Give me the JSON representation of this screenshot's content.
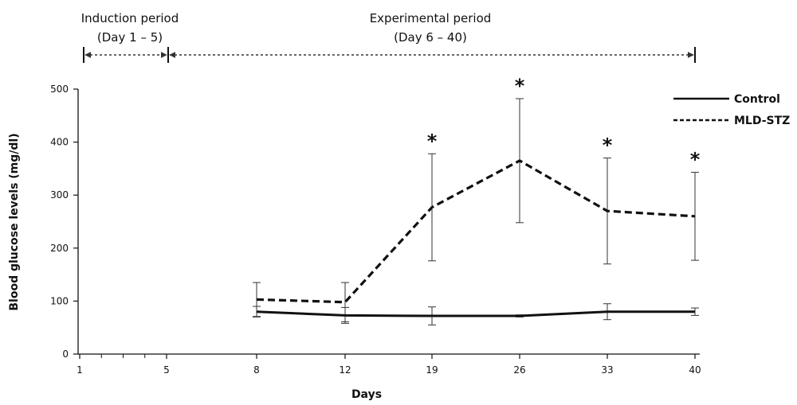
{
  "chart_data": {
    "type": "line",
    "xlabel": "Days",
    "ylabel": "Blood glucose levels (mg/dl)",
    "ylim": [
      0,
      500
    ],
    "y_ticks": [
      0,
      100,
      200,
      300,
      400,
      500
    ],
    "x_axis_labels": [
      "1",
      "5",
      "8",
      "12",
      "19",
      "26",
      "33",
      "40"
    ],
    "periods": [
      {
        "lines": [
          "Induction period",
          "(Day 1 – 5)"
        ]
      },
      {
        "lines": [
          "Experimental period",
          "(Day 6 – 40)"
        ]
      }
    ],
    "x": [
      "8",
      "12",
      "19",
      "26",
      "33",
      "40"
    ],
    "series": [
      {
        "name": "Control",
        "style": "solid",
        "values": [
          80,
          73,
          72,
          72,
          80,
          80
        ],
        "error": [
          10,
          15,
          17,
          2,
          15,
          7
        ]
      },
      {
        "name": "MLD-STZ",
        "style": "dashed",
        "values": [
          103,
          98,
          277,
          365,
          270,
          260
        ],
        "error": [
          32,
          37,
          101,
          117,
          100,
          83
        ]
      }
    ],
    "significance": {
      "symbol": "*",
      "x": [
        "19",
        "26",
        "33",
        "40"
      ]
    },
    "legend_position": "top-right",
    "colors": {
      "line": "#111111",
      "arrow": "#333333"
    }
  }
}
